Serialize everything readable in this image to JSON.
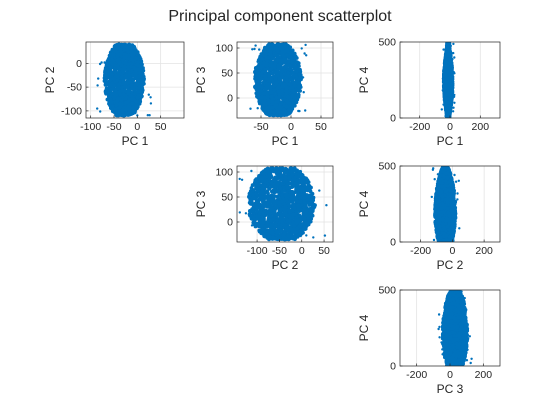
{
  "figure": {
    "title": "Principal component scatterplot",
    "marker_color": "#0072BD",
    "grid": true
  },
  "chart_data": [
    {
      "type": "scatter",
      "grid_position": "row-1-col-1",
      "xlabel": "PC 1",
      "ylabel": "PC 2",
      "xlim": [
        -110,
        100
      ],
      "ylim": [
        -115,
        45
      ],
      "xticks": [
        -100,
        -50,
        0,
        50
      ],
      "yticks": [
        -100,
        -50,
        0
      ],
      "cloud": {
        "xmin": -70,
        "xmax": 15,
        "ymin": -110,
        "ymax": 40,
        "x_center": -28
      }
    },
    {
      "type": "scatter",
      "grid_position": "row-1-col-2",
      "xlabel": "PC 1",
      "ylabel": "PC 3",
      "xlim": [
        -90,
        70
      ],
      "ylim": [
        -40,
        112
      ],
      "xticks": [
        -50,
        0,
        50
      ],
      "yticks": [
        0,
        50,
        100
      ],
      "cloud": {
        "xmin": -60,
        "xmax": 18,
        "ymin": -35,
        "ymax": 108,
        "x_center": -22
      }
    },
    {
      "type": "scatter",
      "grid_position": "row-1-col-3",
      "xlabel": "PC 1",
      "ylabel": "PC 4",
      "xlim": [
        -330,
        330
      ],
      "ylim": [
        0,
        500
      ],
      "xticks": [
        -200,
        0,
        200
      ],
      "yticks": [
        0,
        500
      ],
      "cloud": {
        "xmin": -40,
        "xmax": 20,
        "ymin": 0,
        "ymax": 500,
        "x_center": -12
      }
    },
    {
      "type": "scatter",
      "grid_position": "row-2-col-2",
      "xlabel": "PC 2",
      "ylabel": "PC 3",
      "xlim": [
        -145,
        70
      ],
      "ylim": [
        -40,
        112
      ],
      "xticks": [
        -100,
        -50,
        0,
        50
      ],
      "yticks": [
        0,
        50,
        100
      ],
      "cloud": {
        "xmin": -120,
        "xmax": 30,
        "ymin": -35,
        "ymax": 108,
        "x_center": -45
      }
    },
    {
      "type": "scatter",
      "grid_position": "row-2-col-3",
      "xlabel": "PC 2",
      "ylabel": "PC 4",
      "xlim": [
        -330,
        300
      ],
      "ylim": [
        0,
        500
      ],
      "xticks": [
        -200,
        0,
        200
      ],
      "yticks": [
        0,
        500
      ],
      "cloud": {
        "xmin": -110,
        "xmax": 20,
        "ymin": 0,
        "ymax": 495,
        "x_center": -45
      }
    },
    {
      "type": "scatter",
      "grid_position": "row-3-col-3",
      "xlabel": "PC 3",
      "ylabel": "PC 4",
      "xlim": [
        -300,
        300
      ],
      "ylim": [
        0,
        500
      ],
      "xticks": [
        -200,
        0,
        200
      ],
      "yticks": [
        0,
        500
      ],
      "cloud": {
        "xmin": -40,
        "xmax": 110,
        "ymin": 0,
        "ymax": 495,
        "x_center": 30
      }
    }
  ]
}
